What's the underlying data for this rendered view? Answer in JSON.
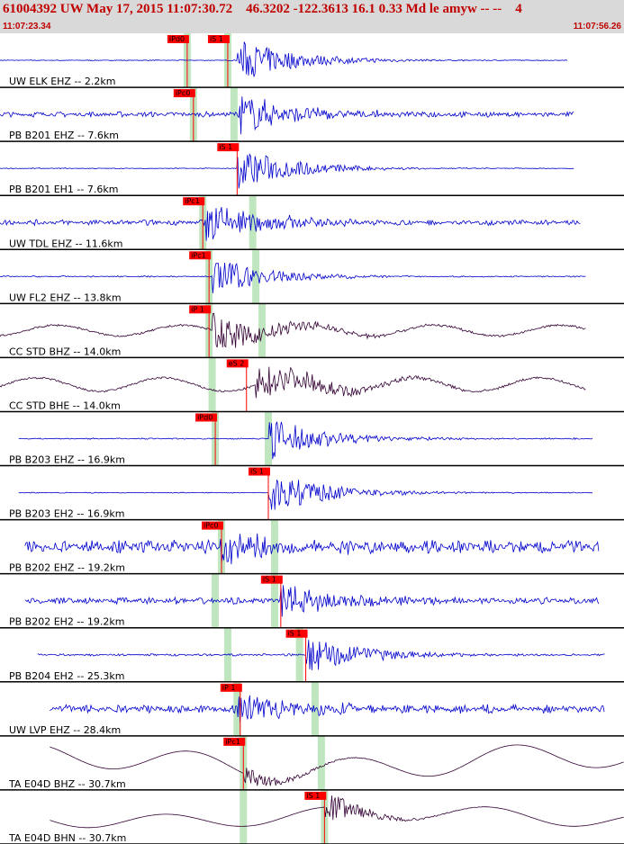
{
  "header": {
    "title": "61004392 UW May 17, 2015 11:07:30.72    46.3202 -122.3613 16.1 0.33 Md le amyw -- --    4",
    "time_start": "11:07:23.34",
    "time_end": "11:07:56.26",
    "background_color": "#d9d9d9",
    "text_color": "#c00000"
  },
  "chart_data": {
    "type": "line",
    "title": "61004392 UW May 17, 2015 11:07:30.72    46.3202 -122.3613 16.1 0.33 Md le amyw -- --    4",
    "time_range": [
      "11:07:23.34",
      "11:07:56.26"
    ],
    "trace_colors": {
      "blue": "#0000cc",
      "dark": "#330033"
    },
    "pick_color": "#ff0000",
    "window_color": "#bfe6bf",
    "series": [
      {
        "name": "UW ELK EHZ -- 2.2km",
        "color": "blue",
        "start": 0.0,
        "end": 0.91,
        "noise": 0.02,
        "ev": 0.38,
        "amp": 0.9,
        "style": "noisy",
        "picks": [
          {
            "label": "iPd0",
            "t": 0.3
          },
          {
            "label": "iS 1",
            "t": 0.365
          }
        ],
        "windows": [
          0.3,
          0.365
        ]
      },
      {
        "name": "PB B201 EHZ -- 7.6km",
        "color": "blue",
        "start": 0.0,
        "end": 0.92,
        "noise": 0.12,
        "ev": 0.38,
        "amp": 0.9,
        "style": "noisy",
        "picks": [
          {
            "label": "iPc0",
            "t": 0.31
          }
        ],
        "windows": [
          0.31,
          0.375
        ]
      },
      {
        "name": "PB B201 EH1 -- 7.6km",
        "color": "blue",
        "start": 0.0,
        "end": 0.92,
        "noise": 0.02,
        "ev": 0.38,
        "amp": 0.9,
        "style": "noisy",
        "picks": [
          {
            "label": "iS 1",
            "t": 0.38
          }
        ],
        "windows": []
      },
      {
        "name": "UW TDL EHZ -- 11.6km",
        "color": "blue",
        "start": 0.0,
        "end": 0.93,
        "noise": 0.12,
        "ev": 0.33,
        "amp": 0.9,
        "style": "noisy",
        "picks": [
          {
            "label": "iPc1",
            "t": 0.325
          }
        ],
        "windows": [
          0.325,
          0.405
        ]
      },
      {
        "name": "UW FL2 EHZ -- 13.8km",
        "color": "blue",
        "start": 0.0,
        "end": 0.94,
        "noise": 0.03,
        "ev": 0.34,
        "amp": 0.8,
        "style": "noisy",
        "picks": [
          {
            "label": "iPc1",
            "t": 0.335
          }
        ],
        "windows": [
          0.335,
          0.41
        ]
      },
      {
        "name": "CC STD BHZ -- 14.0km",
        "color": "dark",
        "start": 0.0,
        "end": 0.94,
        "noise": 0.22,
        "ev": 0.34,
        "amp": 0.7,
        "style": "wavy",
        "picks": [
          {
            "label": "iP 1",
            "t": 0.335
          }
        ],
        "windows": [
          0.335,
          0.42
        ]
      },
      {
        "name": "CC STD BHE -- 14.0km",
        "color": "dark",
        "start": 0.0,
        "end": 0.94,
        "noise": 0.28,
        "ev": 0.41,
        "amp": 0.75,
        "style": "wavy",
        "picks": [
          {
            "label": "eS 2",
            "t": 0.395
          }
        ],
        "windows": [
          0.34
        ]
      },
      {
        "name": "PB B203 EHZ -- 16.9km",
        "color": "blue",
        "start": 0.03,
        "end": 0.95,
        "noise": 0.03,
        "ev": 0.43,
        "amp": 0.9,
        "style": "noisy",
        "picks": [
          {
            "label": "iPd0",
            "t": 0.345
          }
        ],
        "windows": [
          0.345,
          0.43
        ]
      },
      {
        "name": "PB B203 EH2 -- 16.9km",
        "color": "blue",
        "start": 0.03,
        "end": 0.95,
        "noise": 0.02,
        "ev": 0.43,
        "amp": 0.9,
        "style": "noisy",
        "picks": [
          {
            "label": "iS 1",
            "t": 0.43
          }
        ],
        "windows": []
      },
      {
        "name": "PB B202 EHZ -- 19.2km",
        "color": "blue",
        "start": 0.04,
        "end": 0.96,
        "noise": 0.3,
        "ev": 0.35,
        "amp": 0.7,
        "style": "noisy",
        "picks": [
          {
            "label": "iPc0",
            "t": 0.355
          }
        ],
        "windows": [
          0.355,
          0.44
        ]
      },
      {
        "name": "PB B202 EH2 -- 19.2km",
        "color": "blue",
        "start": 0.04,
        "end": 0.96,
        "noise": 0.15,
        "ev": 0.45,
        "amp": 0.75,
        "style": "noisy",
        "picks": [
          {
            "label": "iS 1",
            "t": 0.45
          }
        ],
        "windows": [
          0.345,
          0.44
        ]
      },
      {
        "name": "PB B204 EH2 -- 25.3km",
        "color": "blue",
        "start": 0.06,
        "end": 0.97,
        "noise": 0.05,
        "ev": 0.49,
        "amp": 0.8,
        "style": "noisy",
        "picks": [
          {
            "label": "iS 1",
            "t": 0.49
          }
        ],
        "windows": [
          0.365,
          0.48
        ]
      },
      {
        "name": "UW LVP EHZ -- 28.4km",
        "color": "blue",
        "start": 0.08,
        "end": 0.97,
        "noise": 0.2,
        "ev": 0.38,
        "amp": 0.7,
        "style": "noisy",
        "picks": [
          {
            "label": "iP 1",
            "t": 0.385
          }
        ],
        "windows": [
          0.38,
          0.505
        ]
      },
      {
        "name": "TA E04D BHZ -- 30.7km",
        "color": "dark",
        "start": 0.08,
        "end": 1.0,
        "noise": 0.9,
        "ev": 0.39,
        "amp": 0.3,
        "style": "smooth",
        "picks": [
          {
            "label": "iPc1",
            "t": 0.39
          }
        ],
        "windows": [
          0.39,
          0.515
        ]
      },
      {
        "name": "TA E04D BHN -- 30.7km",
        "color": "dark",
        "start": 0.08,
        "end": 1.0,
        "noise": 0.55,
        "ev": 0.52,
        "amp": 0.5,
        "style": "smooth",
        "picks": [
          {
            "label": "iS 1",
            "t": 0.52
          }
        ],
        "windows": [
          0.39,
          0.52
        ]
      }
    ]
  }
}
